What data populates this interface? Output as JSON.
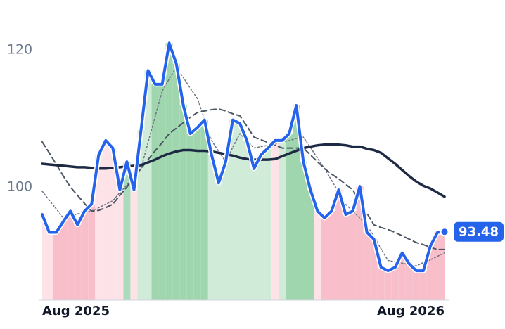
{
  "chart_data": {
    "type": "line",
    "ylim": [
      83.5,
      127.3
    ],
    "yticks": [
      100,
      120
    ],
    "xlim": [
      0,
      57
    ],
    "xticks": [
      {
        "value": 0,
        "label": "Aug 2025"
      },
      {
        "value": 57,
        "label": "Aug 2026"
      }
    ],
    "band_colors": [
      "#fde2e7",
      "#fde2e7",
      "#f8bfca",
      "#f8bfca",
      "#f8bfca",
      "#f8bfca",
      "#f8bfca",
      "#f8bfca",
      "#fde2e7",
      "#fde2e7",
      "#fde2e7",
      "#fde2e7",
      "#a9dcbc",
      "#fde2e7",
      "#d0ecd9",
      "#d0ecd9",
      "#9fd6ae",
      "#9fd6ae",
      "#9fd6ae",
      "#9fd6ae",
      "#9fd6ae",
      "#9fd6ae",
      "#9fd6ae",
      "#9fd6ae",
      "#d0ecd9",
      "#d0ecd9",
      "#d0ecd9",
      "#d0ecd9",
      "#d0ecd9",
      "#d0ecd9",
      "#d0ecd9",
      "#d0ecd9",
      "#d0ecd9",
      "#fde2e7",
      "#d0ecd9",
      "#9fd6ae",
      "#9fd6ae",
      "#9fd6ae",
      "#9fd6ae",
      "#fde2e7",
      "#f8bfca",
      "#f8bfca",
      "#f8bfca",
      "#f8bfca",
      "#f8bfca",
      "#f8bfca",
      "#f8bfca",
      "#f8bfca",
      "#f8bfca",
      "#f8bfca",
      "#f8bfca",
      "#f8bfca",
      "#f8bfca",
      "#f8bfca",
      "#f8bfca",
      "#f8bfca",
      "#f8bfca",
      "#f8bfca"
    ],
    "series": [
      {
        "color": "#2563eb",
        "style": "solid",
        "width": 4,
        "values": [
          96,
          93.4,
          93.4,
          95,
          96.5,
          94.5,
          96.5,
          97.5,
          104.7,
          106.8,
          105.7,
          99.6,
          103.7,
          99.6,
          108.3,
          117,
          115,
          115,
          121,
          118,
          111.9,
          107.8,
          108.7,
          109.8,
          104.7,
          100.6,
          103.7,
          109.8,
          109.3,
          106.8,
          102.7,
          104.7,
          105.7,
          106.8,
          106.8,
          107.8,
          111.9,
          103.7,
          99.6,
          96.5,
          95.5,
          96.5,
          99.6,
          96,
          96.5,
          100.1,
          93.4,
          92.4,
          88.3,
          87.8,
          88.3,
          90.4,
          88.8,
          87.8,
          87.8,
          91.4,
          93.4,
          93.48
        ]
      },
      {
        "color": "#1e2a44",
        "style": "solid",
        "width": 3.5,
        "values": [
          103.4,
          103.3,
          103.2,
          103.1,
          103,
          102.9,
          102.9,
          102.8,
          102.7,
          102.7,
          102.8,
          102.9,
          103,
          103.1,
          103.2,
          103.6,
          104,
          104.5,
          104.9,
          105.2,
          105.4,
          105.4,
          105.3,
          105.3,
          105.2,
          105,
          104.8,
          104.6,
          104.3,
          104.1,
          104,
          104,
          104,
          104.1,
          104.5,
          104.9,
          105.3,
          105.7,
          105.9,
          106.1,
          106.2,
          106.2,
          106.2,
          106.1,
          105.9,
          105.9,
          105.6,
          105.4,
          105,
          104.2,
          103.4,
          102.5,
          101.6,
          100.8,
          100.2,
          99.8,
          99.2,
          98.6
        ]
      },
      {
        "color": "#4b5563",
        "style": "dashed",
        "width": 2,
        "values": [
          106.6,
          105,
          103.3,
          101.6,
          100,
          98.8,
          97.6,
          96.5,
          96.6,
          97,
          97.5,
          98.8,
          100,
          101.4,
          102.7,
          104,
          105.3,
          106.5,
          107.8,
          108.6,
          109.4,
          110.2,
          110.9,
          111.1,
          111.3,
          111.4,
          111.1,
          110.7,
          110.4,
          108.9,
          107.3,
          106.9,
          106.5,
          106.1,
          105.7,
          105.7,
          105.7,
          105.7,
          104.7,
          103.7,
          102.7,
          101.9,
          101.2,
          100.4,
          99.6,
          97.9,
          96.2,
          94.5,
          94.1,
          93.8,
          93.4,
          92.9,
          92.4,
          91.9,
          91.6,
          91.2,
          90.9,
          90.9
        ]
      },
      {
        "color": "#6b7280",
        "style": "dotted",
        "width": 1.5,
        "values": [
          99.4,
          98.1,
          96.8,
          95.5,
          95.8,
          96.1,
          96.3,
          96.5,
          97,
          97.5,
          98,
          99.2,
          100.3,
          101.5,
          102.7,
          106.5,
          110.3,
          114,
          115.8,
          117.5,
          116,
          114.4,
          112.9,
          109.9,
          106.8,
          105.2,
          103.7,
          105.8,
          107.8,
          106.8,
          105.7,
          105.9,
          106.1,
          106.3,
          106.6,
          106.8,
          107.1,
          107.3,
          105.8,
          104.2,
          102.7,
          101,
          99.2,
          97.5,
          96.5,
          95.5,
          94.5,
          92.8,
          91,
          89.3,
          89.1,
          88.9,
          88.7,
          88.5,
          89,
          89.4,
          89.9,
          90.4
        ]
      }
    ]
  }
}
